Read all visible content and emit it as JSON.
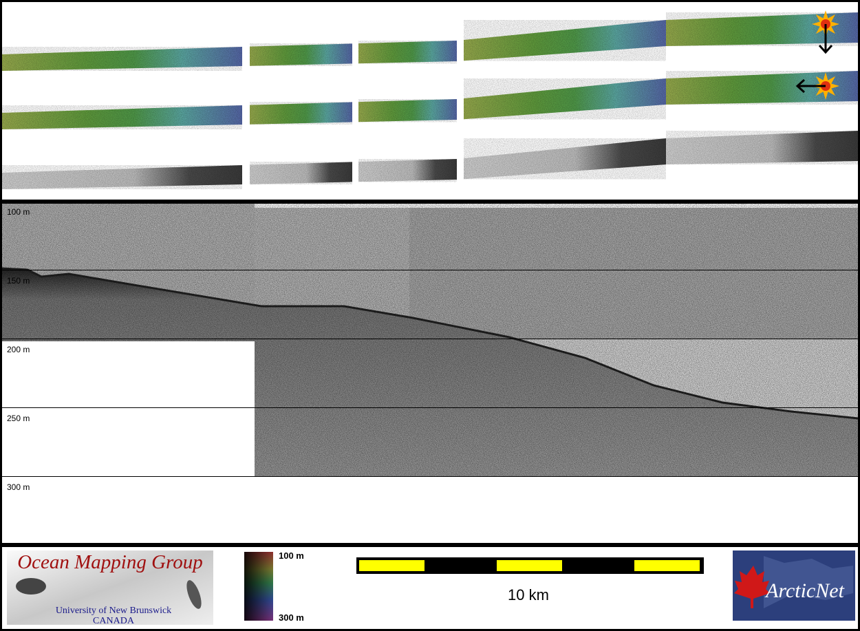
{
  "profile": {
    "depth_labels": [
      "100 m",
      "150 m",
      "200 m",
      "250 m",
      "300 m"
    ]
  },
  "colorbar": {
    "top_label": "100 m",
    "bottom_label": "300 m"
  },
  "scale_bar": {
    "label": "10 km"
  },
  "logos": {
    "omg": {
      "title": "Ocean Mapping Group",
      "line1": "University of New Brunswick",
      "line2": "CANADA"
    },
    "arcticnet": "ArcticNet"
  }
}
